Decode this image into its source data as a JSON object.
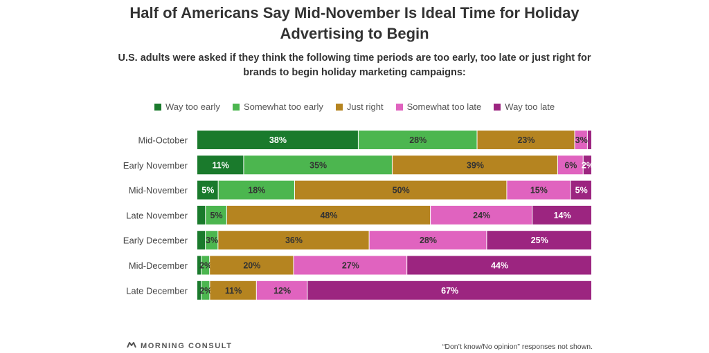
{
  "brand": {
    "name": "MORNING CONSULT",
    "logo_icon": "morning-consult-logo-icon"
  },
  "note": "“Don’t know/No opinion” responses not shown.",
  "chart_data": {
    "type": "bar",
    "orientation": "horizontal",
    "stacked": true,
    "title": "Half of Americans Say Mid-November Is Ideal Time for Holiday Advertising to Begin",
    "subtitle": "U.S. adults were asked if they think the following time periods are too early, too late or just right for brands to begin holiday marketing campaigns:",
    "legend_position": "top",
    "grid": false,
    "categories": [
      "Mid-October",
      "Early November",
      "Mid-November",
      "Late November",
      "Early December",
      "Mid-December",
      "Late December"
    ],
    "series": [
      {
        "name": "Way too early",
        "color": "#1a7a2c",
        "values": [
          38,
          11,
          5,
          2,
          2,
          1,
          1
        ],
        "labels": [
          "38%",
          "11%",
          "5%",
          "",
          "",
          "",
          ""
        ]
      },
      {
        "name": "Somewhat too early",
        "color": "#4cb64f",
        "values": [
          28,
          35,
          18,
          5,
          3,
          2,
          2
        ],
        "labels": [
          "28%",
          "35%",
          "18%",
          "5%",
          "3%",
          "2%",
          "2%"
        ]
      },
      {
        "name": "Just right",
        "color": "#b58420",
        "values": [
          23,
          39,
          50,
          48,
          36,
          20,
          11
        ],
        "labels": [
          "23%",
          "39%",
          "50%",
          "48%",
          "36%",
          "20%",
          "11%"
        ]
      },
      {
        "name": "Somewhat too late",
        "color": "#e063bf",
        "values": [
          3,
          6,
          15,
          24,
          28,
          27,
          12
        ],
        "labels": [
          "3%",
          "6%",
          "15%",
          "24%",
          "28%",
          "27%",
          "12%"
        ]
      },
      {
        "name": "Way too late",
        "color": "#9c2580",
        "values": [
          1,
          2,
          5,
          14,
          25,
          44,
          67
        ],
        "labels": [
          "",
          "2%",
          "5%",
          "14%",
          "25%",
          "44%",
          "67%"
        ]
      }
    ]
  }
}
